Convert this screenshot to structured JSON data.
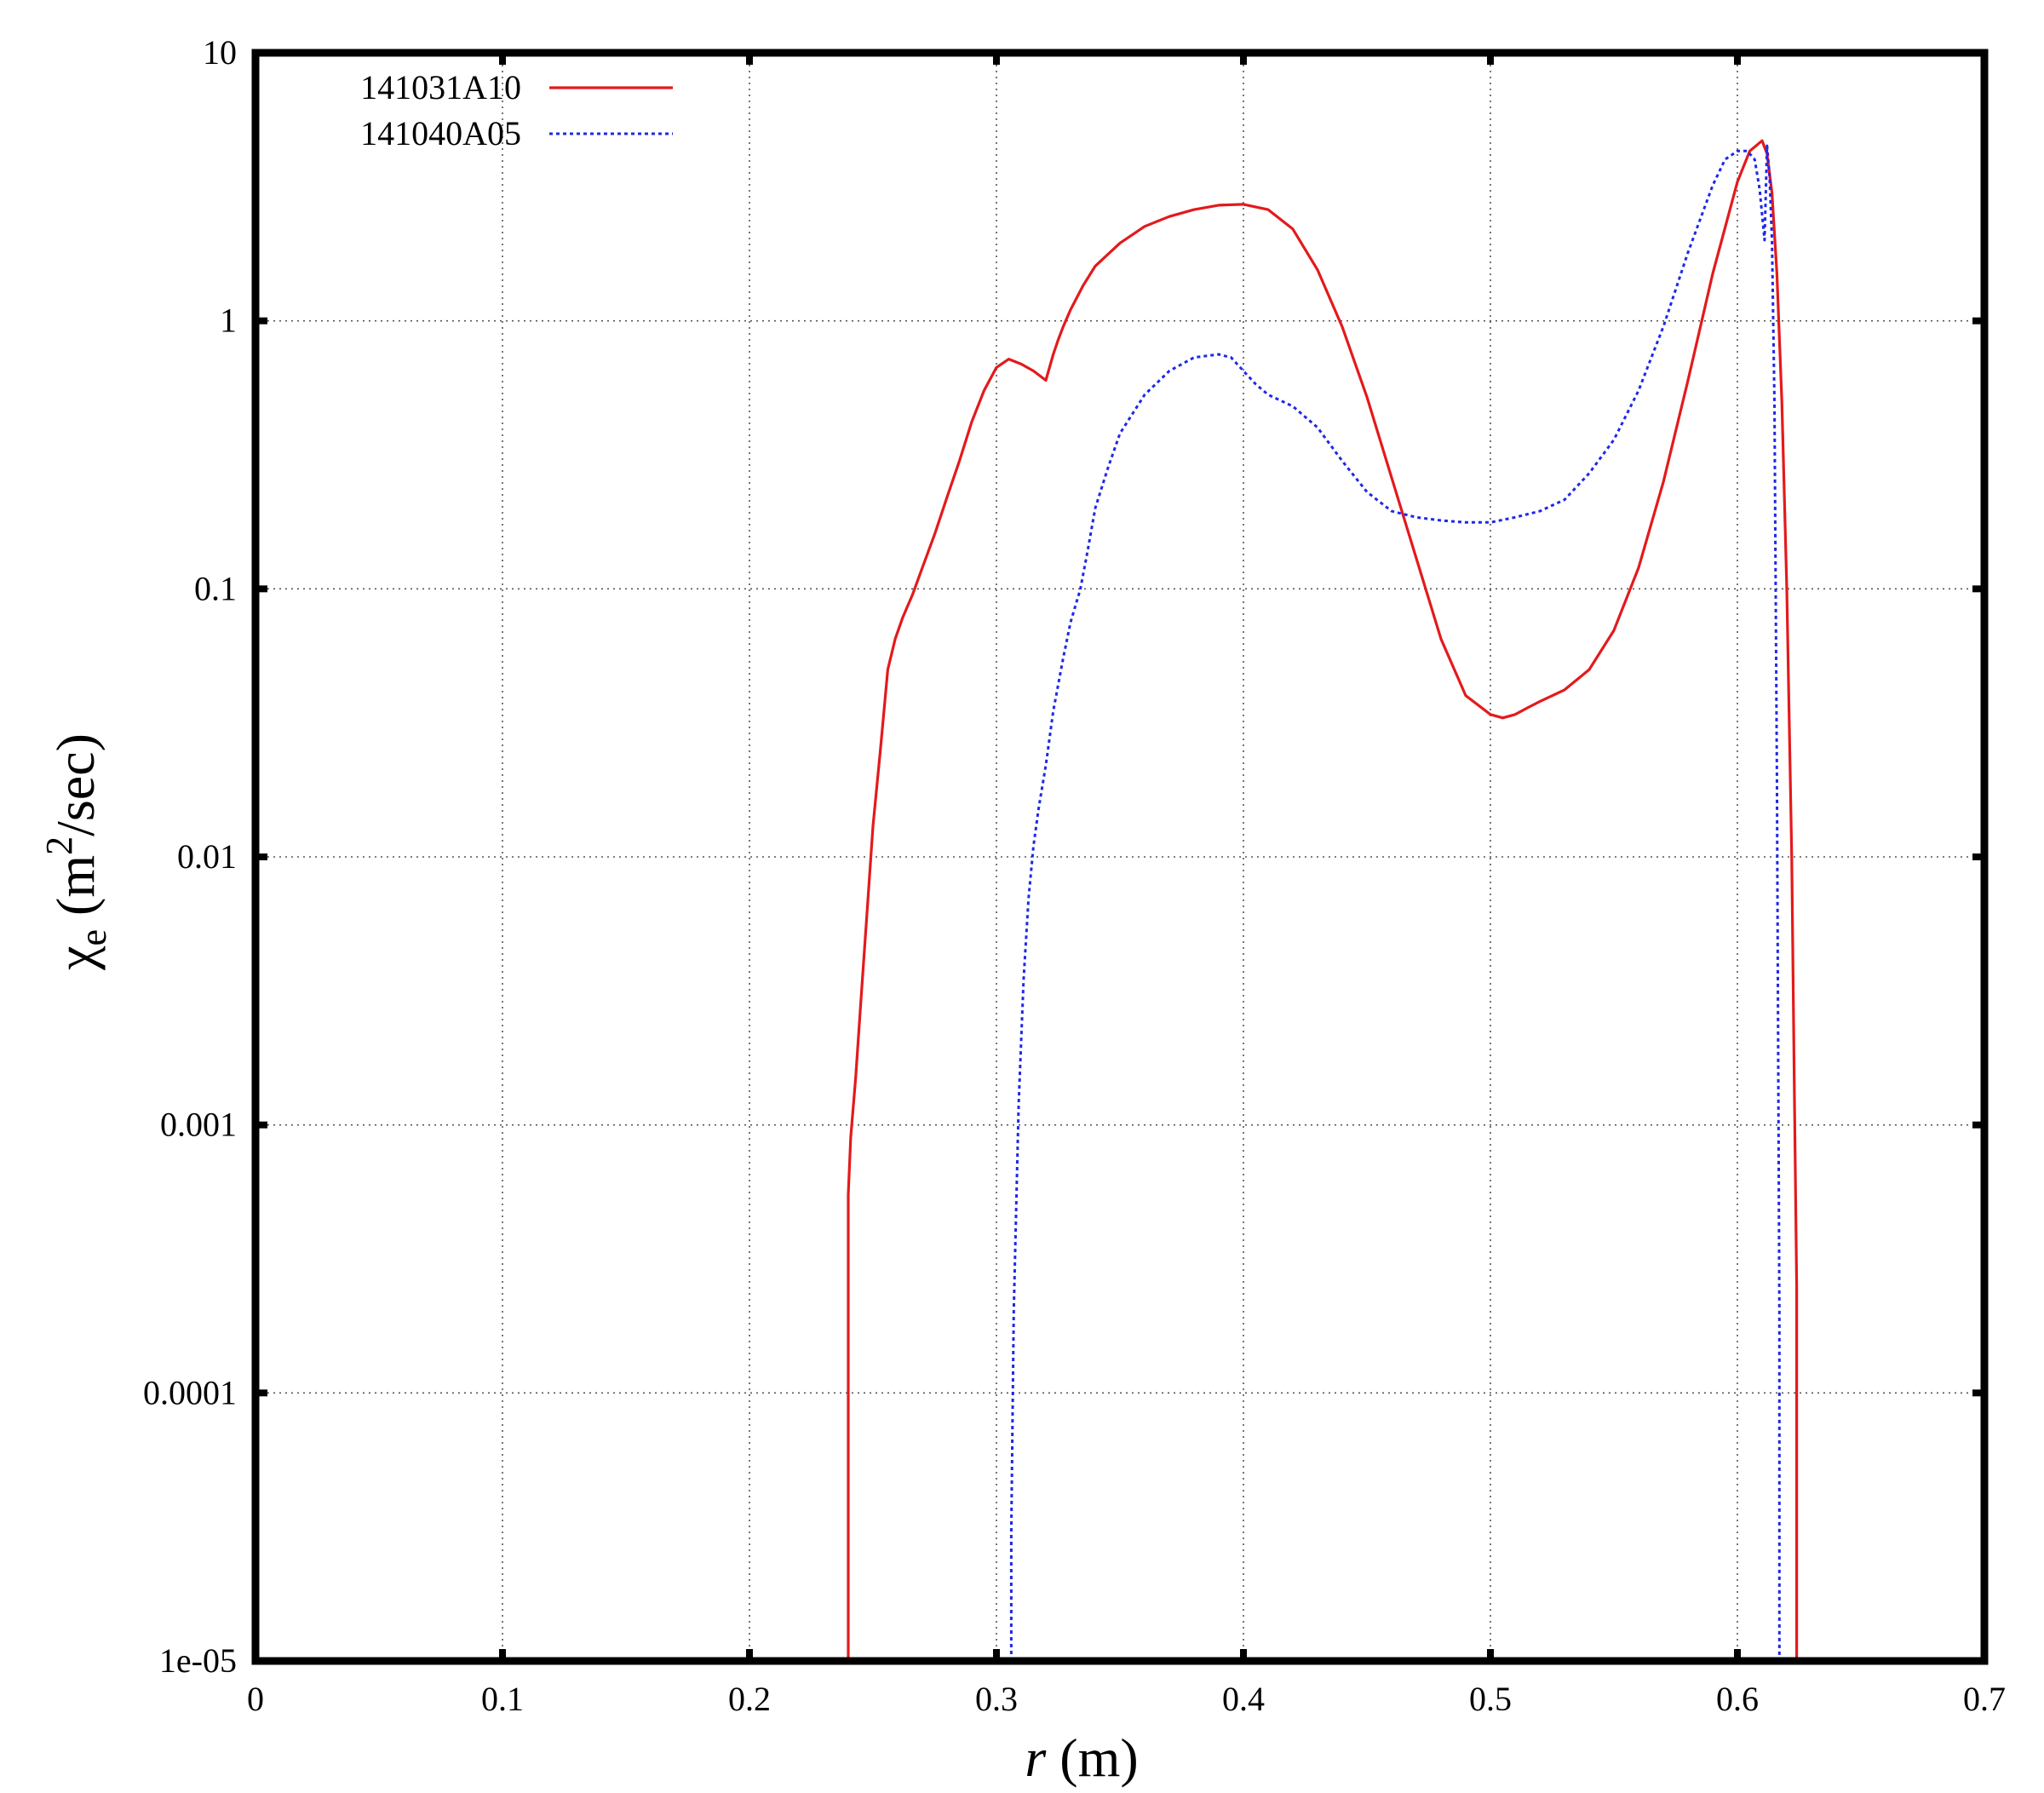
{
  "chart_data": {
    "type": "line",
    "xlabel": {
      "var": "r",
      "unit": " (m)"
    },
    "ylabel": {
      "var": "χ",
      "sub": "e",
      "pre": " (m",
      "sup": "2",
      "post": "/sec)"
    },
    "xlim": [
      0,
      0.7
    ],
    "ylim": [
      1e-05,
      10
    ],
    "y_scale": "log",
    "grid": true,
    "legend_position": "top-left",
    "x_ticks": [
      {
        "value": 0,
        "label": "0"
      },
      {
        "value": 0.1,
        "label": "0.1"
      },
      {
        "value": 0.2,
        "label": "0.2"
      },
      {
        "value": 0.3,
        "label": "0.3"
      },
      {
        "value": 0.4,
        "label": "0.4"
      },
      {
        "value": 0.5,
        "label": "0.5"
      },
      {
        "value": 0.6,
        "label": "0.6"
      },
      {
        "value": 0.7,
        "label": "0.7"
      }
    ],
    "y_ticks": [
      {
        "value": 1e-05,
        "label": "1e-05"
      },
      {
        "value": 0.0001,
        "label": "0.0001"
      },
      {
        "value": 0.001,
        "label": "0.001"
      },
      {
        "value": 0.01,
        "label": "0.01"
      },
      {
        "value": 0.1,
        "label": "0.1"
      },
      {
        "value": 1,
        "label": "1"
      },
      {
        "value": 10,
        "label": "10"
      }
    ],
    "series": [
      {
        "name": "141031A10",
        "color": "#e31a1c",
        "style": "solid",
        "x": [
          0.24,
          0.24,
          0.241,
          0.243,
          0.245,
          0.248,
          0.25,
          0.253,
          0.256,
          0.259,
          0.262,
          0.266,
          0.27,
          0.275,
          0.28,
          0.285,
          0.29,
          0.295,
          0.3,
          0.305,
          0.31,
          0.315,
          0.32,
          0.323,
          0.325,
          0.327,
          0.33,
          0.335,
          0.34,
          0.35,
          0.36,
          0.37,
          0.38,
          0.39,
          0.4,
          0.41,
          0.42,
          0.43,
          0.44,
          0.45,
          0.46,
          0.47,
          0.48,
          0.49,
          0.5,
          0.505,
          0.51,
          0.515,
          0.52,
          0.53,
          0.54,
          0.55,
          0.56,
          0.57,
          0.58,
          0.59,
          0.6,
          0.605,
          0.61,
          0.612,
          0.614,
          0.616,
          0.618,
          0.62,
          0.622,
          0.623,
          0.624,
          0.624
        ],
        "y": [
          1e-05,
          0.00055,
          0.0009,
          0.0015,
          0.0028,
          0.007,
          0.013,
          0.025,
          0.05,
          0.065,
          0.078,
          0.095,
          0.12,
          0.16,
          0.22,
          0.3,
          0.42,
          0.55,
          0.67,
          0.72,
          0.69,
          0.65,
          0.6,
          0.75,
          0.85,
          0.95,
          1.1,
          1.35,
          1.6,
          1.95,
          2.25,
          2.45,
          2.6,
          2.7,
          2.72,
          2.6,
          2.2,
          1.55,
          0.95,
          0.52,
          0.26,
          0.13,
          0.065,
          0.04,
          0.034,
          0.033,
          0.034,
          0.036,
          0.038,
          0.042,
          0.05,
          0.07,
          0.12,
          0.25,
          0.6,
          1.5,
          3.3,
          4.3,
          4.7,
          4.2,
          3.0,
          1.5,
          0.5,
          0.1,
          0.01,
          0.0015,
          0.00025,
          1e-05
        ]
      },
      {
        "name": "141040A05",
        "color": "#1f28e8",
        "style": "dotted",
        "x": [
          0.306,
          0.306,
          0.307,
          0.309,
          0.311,
          0.313,
          0.315,
          0.317,
          0.32,
          0.323,
          0.327,
          0.33,
          0.334,
          0.337,
          0.34,
          0.345,
          0.35,
          0.36,
          0.37,
          0.38,
          0.39,
          0.395,
          0.4,
          0.405,
          0.41,
          0.42,
          0.43,
          0.44,
          0.45,
          0.46,
          0.47,
          0.48,
          0.49,
          0.5,
          0.51,
          0.52,
          0.53,
          0.54,
          0.55,
          0.56,
          0.57,
          0.58,
          0.59,
          0.595,
          0.6,
          0.604,
          0.607,
          0.609,
          0.611,
          0.612,
          0.613,
          0.614,
          0.615,
          0.616,
          0.617,
          0.617
        ],
        "y": [
          1e-05,
          3e-05,
          0.0002,
          0.0012,
          0.0035,
          0.007,
          0.011,
          0.015,
          0.022,
          0.035,
          0.055,
          0.075,
          0.1,
          0.14,
          0.2,
          0.28,
          0.38,
          0.53,
          0.65,
          0.73,
          0.75,
          0.73,
          0.65,
          0.58,
          0.53,
          0.48,
          0.4,
          0.3,
          0.23,
          0.195,
          0.185,
          0.18,
          0.177,
          0.177,
          0.185,
          0.195,
          0.215,
          0.27,
          0.36,
          0.55,
          0.95,
          1.8,
          3.2,
          4.0,
          4.3,
          4.3,
          4.0,
          3.1,
          2.0,
          4.5,
          3.5,
          2.0,
          0.5,
          0.02,
          0.0002,
          1e-05
        ]
      }
    ]
  }
}
